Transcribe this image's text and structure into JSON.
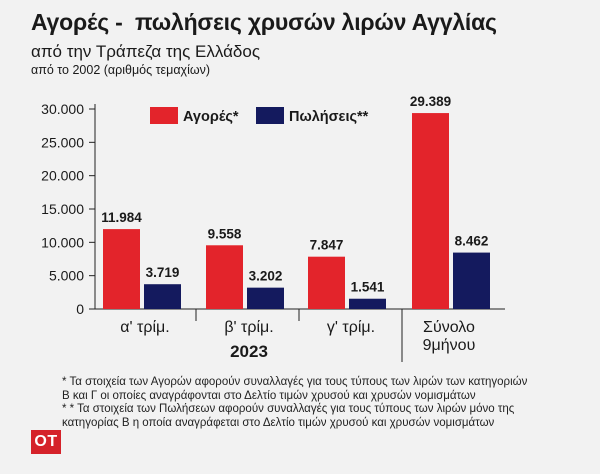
{
  "header": {
    "title": "Αγορές -  πωλήσεις χρυσών λιρών Αγγλίας",
    "subtitle": "από την Τράπεζα της Ελλάδος",
    "subtitle2": "από το 2002 (αριθμός τεμαχίων)"
  },
  "chart_data": {
    "type": "bar",
    "categories": [
      "α' τρίμ.",
      "β' τρίμ.",
      "γ' τρίμ.",
      "Σύνολο 9μήνου"
    ],
    "category_lines": [
      [
        "α' τρίμ."
      ],
      [
        "β' τρίμ."
      ],
      [
        "γ' τρίμ."
      ],
      [
        "Σύνολο",
        "9μήνου"
      ]
    ],
    "series": [
      {
        "name": "Αγορές*",
        "color": "#e3242b",
        "values": [
          11984,
          9558,
          7847,
          29389
        ],
        "labels": [
          "11.984",
          "9.558",
          "7.847",
          "29.389"
        ]
      },
      {
        "name": "Πωλήσεις**",
        "color": "#141a5e",
        "values": [
          3719,
          3202,
          1541,
          8462
        ],
        "labels": [
          "3.719",
          "3.202",
          "1.541",
          "8.462"
        ]
      }
    ],
    "ylim": [
      0,
      30000
    ],
    "yticks": [
      0,
      5000,
      10000,
      15000,
      20000,
      25000,
      30000
    ],
    "ytick_labels": [
      "0",
      "5.000",
      "10.000",
      "15.000",
      "20.000",
      "25.000",
      "30.000"
    ],
    "group_label": "2023",
    "grid": false,
    "legend_position": "top"
  },
  "footnotes": [
    "*  Τα στοιχεία των Αγορών αφορούν συναλλαγές για τους τύπους των λιρών των κατηγοριών Β και Γ οι οποίες αναγράφονται στο Δελτίο τιμών χρυσού και χρυσών νομισμάτων",
    "* * Τα στοιχεία των Πωλήσεων αφορούν συναλλαγές για τους τύπους των λιρών μόνο της κατηγορίας Β η οποία αναγράφεται στο Δελτίο τιμών χρυσού και χρυσών νομισμάτων"
  ],
  "logo": "OT"
}
